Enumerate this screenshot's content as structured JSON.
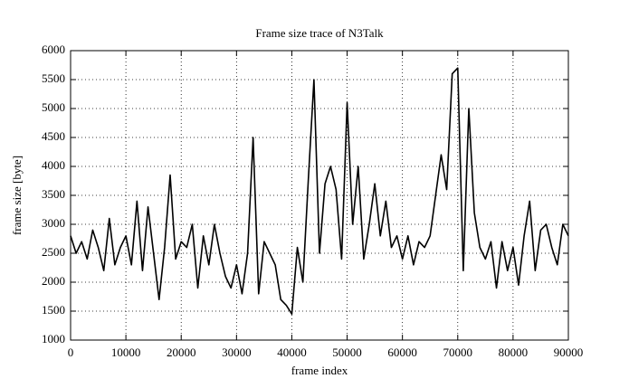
{
  "chart_data": {
    "type": "line",
    "title": "Frame size trace of N3Talk",
    "xlabel": "frame index",
    "ylabel": "frame size [byte]",
    "x": [
      0,
      1000,
      2000,
      3000,
      4000,
      5000,
      6000,
      7000,
      8000,
      9000,
      10000,
      11000,
      12000,
      13000,
      14000,
      15000,
      16000,
      17000,
      18000,
      19000,
      20000,
      21000,
      22000,
      23000,
      24000,
      25000,
      26000,
      27000,
      28000,
      29000,
      30000,
      31000,
      32000,
      33000,
      34000,
      35000,
      36000,
      37000,
      38000,
      39000,
      40000,
      41000,
      42000,
      43000,
      44000,
      45000,
      46000,
      47000,
      48000,
      49000,
      50000,
      51000,
      52000,
      53000,
      54000,
      55000,
      56000,
      57000,
      58000,
      59000,
      60000,
      61000,
      62000,
      63000,
      64000,
      65000,
      66000,
      67000,
      68000,
      69000,
      70000,
      71000,
      72000,
      73000,
      74000,
      75000,
      76000,
      77000,
      78000,
      79000,
      80000,
      81000,
      82000,
      83000,
      84000,
      85000,
      86000,
      87000,
      88000,
      89000,
      90000
    ],
    "series": [
      {
        "name": "N3Talk",
        "color": "#000000",
        "values": [
          2800,
          2500,
          2700,
          2400,
          2900,
          2600,
          2200,
          3100,
          2300,
          2600,
          2800,
          2300,
          3400,
          2200,
          3300,
          2500,
          1700,
          2600,
          3850,
          2400,
          2700,
          2600,
          3000,
          1900,
          2800,
          2300,
          3000,
          2500,
          2100,
          1900,
          2300,
          1800,
          2500,
          4500,
          1800,
          2700,
          2500,
          2300,
          1700,
          1600,
          1450,
          2600,
          2000,
          3800,
          5500,
          2500,
          3700,
          4000,
          3600,
          2400,
          5100,
          3000,
          4000,
          2400,
          3000,
          3700,
          2800,
          3400,
          2600,
          2800,
          2400,
          2800,
          2300,
          2700,
          2600,
          2800,
          3500,
          4200,
          3600,
          5600,
          5700,
          2200,
          5000,
          3200,
          2600,
          2400,
          2700,
          1900,
          2700,
          2200,
          2600,
          1950,
          2800,
          3400,
          2200,
          2900,
          3000,
          2600,
          2300,
          3000,
          2800
        ]
      }
    ],
    "xlim": [
      0,
      90000
    ],
    "ylim": [
      1000,
      6000
    ],
    "xticks": [
      0,
      10000,
      20000,
      30000,
      40000,
      50000,
      60000,
      70000,
      80000,
      90000
    ],
    "yticks": [
      1000,
      1500,
      2000,
      2500,
      3000,
      3500,
      4000,
      4500,
      5000,
      5500,
      6000
    ],
    "grid": true
  }
}
